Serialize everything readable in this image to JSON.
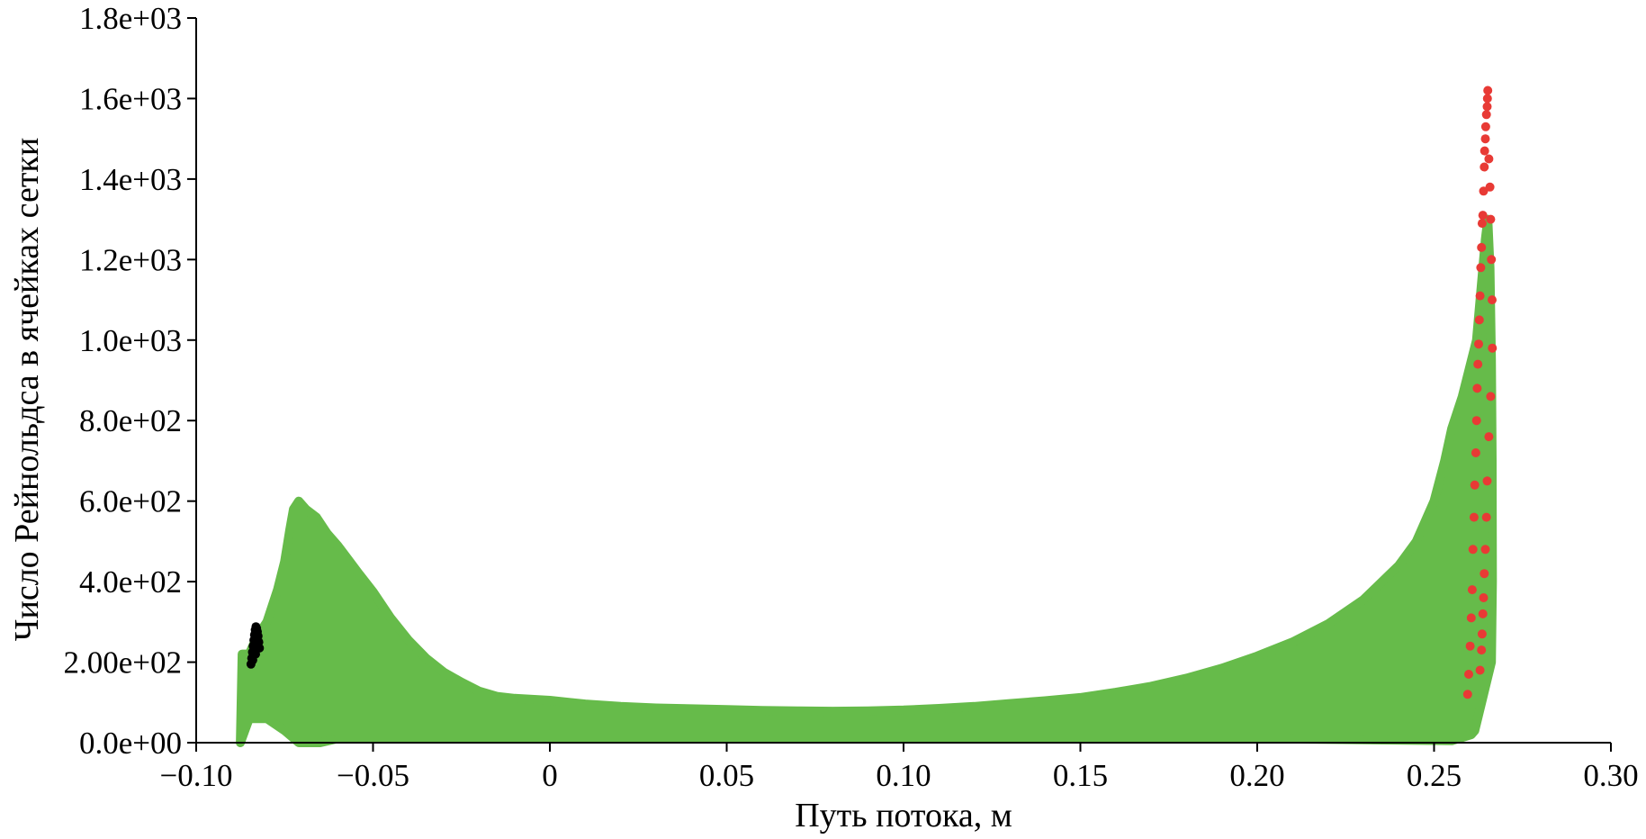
{
  "chart_data": {
    "type": "scatter",
    "title": "",
    "xlabel": "Путь потока, м",
    "ylabel": "Число Рейнольдса в ячейках сетки",
    "xlim": [
      -0.1,
      0.3
    ],
    "ylim": [
      0,
      1800
    ],
    "x_ticks": [
      {
        "value": -0.1,
        "label": "−0.10"
      },
      {
        "value": -0.05,
        "label": "−0.05"
      },
      {
        "value": 0,
        "label": "0"
      },
      {
        "value": 0.05,
        "label": "0.05"
      },
      {
        "value": 0.1,
        "label": "0.10"
      },
      {
        "value": 0.15,
        "label": "0.15"
      },
      {
        "value": 0.2,
        "label": "0.20"
      },
      {
        "value": 0.25,
        "label": "0.25"
      },
      {
        "value": 0.3,
        "label": "0.30"
      }
    ],
    "y_ticks": [
      {
        "value": 0,
        "label": "0.0e+00"
      },
      {
        "value": 200,
        "label": "2.00e+02"
      },
      {
        "value": 400,
        "label": "4.0e+02"
      },
      {
        "value": 600,
        "label": "6.0e+02"
      },
      {
        "value": 800,
        "label": "8.0e+02"
      },
      {
        "value": 1000,
        "label": "1.0e+03"
      },
      {
        "value": 1200,
        "label": "1.2e+03"
      },
      {
        "value": 1400,
        "label": "1.4e+03"
      },
      {
        "value": 1600,
        "label": "1.6e+03"
      },
      {
        "value": 1800,
        "label": "1.8e+03"
      }
    ],
    "grid": false,
    "legend": "none",
    "series": [
      {
        "color": "#e83a35",
        "points": [
          [
            0.2595,
            120
          ],
          [
            0.2598,
            170
          ],
          [
            0.2602,
            240
          ],
          [
            0.2605,
            310
          ],
          [
            0.2608,
            380
          ],
          [
            0.261,
            480
          ],
          [
            0.2613,
            560
          ],
          [
            0.2615,
            640
          ],
          [
            0.2618,
            720
          ],
          [
            0.262,
            800
          ],
          [
            0.2622,
            880
          ],
          [
            0.2624,
            940
          ],
          [
            0.2626,
            990
          ],
          [
            0.2628,
            1050
          ],
          [
            0.263,
            1110
          ],
          [
            0.2632,
            1180
          ],
          [
            0.2634,
            1230
          ],
          [
            0.2636,
            1290
          ],
          [
            0.2638,
            1310
          ],
          [
            0.264,
            1370
          ],
          [
            0.2642,
            1430
          ],
          [
            0.2643,
            1470
          ],
          [
            0.2645,
            1500
          ],
          [
            0.2646,
            1530
          ],
          [
            0.2648,
            1560
          ],
          [
            0.265,
            1580
          ],
          [
            0.2651,
            1600
          ],
          [
            0.2652,
            1620
          ],
          [
            0.2655,
            1450
          ],
          [
            0.2658,
            1380
          ],
          [
            0.266,
            1300
          ],
          [
            0.2662,
            1200
          ],
          [
            0.2664,
            1100
          ],
          [
            0.2665,
            980
          ],
          [
            0.266,
            860
          ],
          [
            0.2655,
            760
          ],
          [
            0.265,
            650
          ],
          [
            0.2648,
            560
          ],
          [
            0.2645,
            480
          ],
          [
            0.2642,
            420
          ],
          [
            0.264,
            360
          ],
          [
            0.2638,
            320
          ],
          [
            0.2636,
            270
          ],
          [
            0.2634,
            230
          ],
          [
            0.263,
            180
          ]
        ]
      },
      {
        "color": "#000000",
        "points": [
          [
            -0.0845,
            195
          ],
          [
            -0.0843,
            210
          ],
          [
            -0.0841,
            225
          ],
          [
            -0.0839,
            240
          ],
          [
            -0.0837,
            255
          ],
          [
            -0.0835,
            268
          ],
          [
            -0.0833,
            280
          ],
          [
            -0.0831,
            288
          ],
          [
            -0.0829,
            284
          ],
          [
            -0.0827,
            276
          ],
          [
            -0.0825,
            265
          ],
          [
            -0.0823,
            250
          ],
          [
            -0.0821,
            235
          ],
          [
            -0.084,
            205
          ],
          [
            -0.0832,
            220
          ]
        ]
      },
      {
        "color": "#66bb4a",
        "envelope": [
          [
            -0.087,
            220
          ],
          [
            -0.085,
            220
          ],
          [
            -0.083,
            260
          ],
          [
            -0.08,
            300
          ],
          [
            -0.077,
            380
          ],
          [
            -0.075,
            450
          ],
          [
            -0.0735,
            530
          ],
          [
            -0.0725,
            580
          ],
          [
            -0.071,
            600
          ],
          [
            -0.069,
            580
          ],
          [
            -0.066,
            560
          ],
          [
            -0.063,
            520
          ],
          [
            -0.06,
            490
          ],
          [
            -0.057,
            455
          ],
          [
            -0.054,
            420
          ],
          [
            -0.05,
            375
          ],
          [
            -0.045,
            310
          ],
          [
            -0.04,
            255
          ],
          [
            -0.035,
            210
          ],
          [
            -0.03,
            175
          ],
          [
            -0.025,
            150
          ],
          [
            -0.02,
            128
          ],
          [
            -0.015,
            115
          ],
          [
            -0.01,
            110
          ],
          [
            0.0,
            105
          ],
          [
            0.01,
            96
          ],
          [
            0.02,
            90
          ],
          [
            0.03,
            86
          ],
          [
            0.04,
            84
          ],
          [
            0.05,
            82
          ],
          [
            0.06,
            80
          ],
          [
            0.07,
            79
          ],
          [
            0.08,
            78
          ],
          [
            0.09,
            79
          ],
          [
            0.1,
            81
          ],
          [
            0.11,
            85
          ],
          [
            0.12,
            90
          ],
          [
            0.13,
            97
          ],
          [
            0.14,
            104
          ],
          [
            0.15,
            112
          ],
          [
            0.16,
            125
          ],
          [
            0.17,
            140
          ],
          [
            0.18,
            160
          ],
          [
            0.19,
            185
          ],
          [
            0.2,
            215
          ],
          [
            0.21,
            250
          ],
          [
            0.22,
            295
          ],
          [
            0.23,
            355
          ],
          [
            0.24,
            440
          ],
          [
            0.245,
            500
          ],
          [
            0.25,
            600
          ],
          [
            0.253,
            700
          ],
          [
            0.255,
            780
          ],
          [
            0.258,
            860
          ],
          [
            0.26,
            930
          ],
          [
            0.262,
            1000
          ],
          [
            0.2635,
            1150
          ],
          [
            0.2645,
            1250
          ],
          [
            0.2652,
            1300
          ],
          [
            0.2658,
            1180
          ],
          [
            0.2662,
            950
          ],
          [
            0.2664,
            700
          ],
          [
            0.2665,
            400
          ],
          [
            0.2662,
            200
          ]
        ],
        "floor": [
          [
            -0.0875,
            0
          ],
          [
            -0.085,
            60
          ],
          [
            -0.08,
            60
          ],
          [
            -0.075,
            30
          ],
          [
            -0.071,
            0
          ],
          [
            -0.065,
            0
          ],
          [
            -0.06,
            10
          ],
          [
            0.0,
            10
          ],
          [
            0.1,
            10
          ],
          [
            0.2,
            10
          ],
          [
            0.255,
            5
          ],
          [
            0.2605,
            20
          ],
          [
            0.2615,
            30
          ]
        ]
      }
    ]
  }
}
